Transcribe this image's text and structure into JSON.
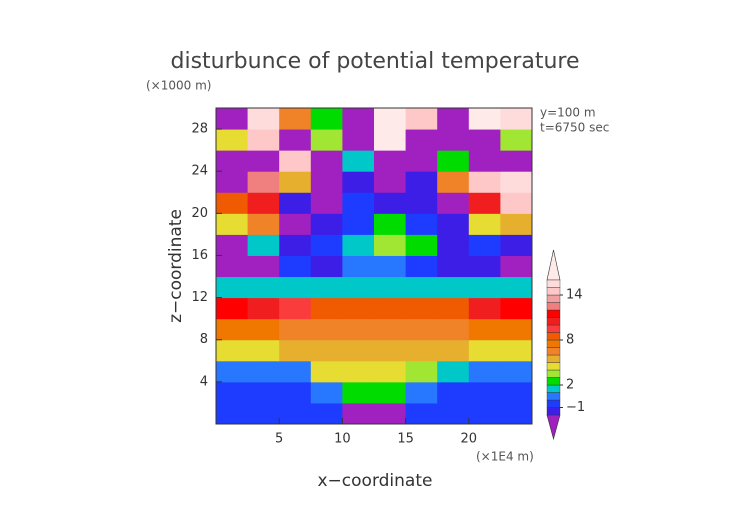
{
  "chart_data": {
    "type": "contour",
    "title": "disturbunce of potential temperature",
    "y_unit": "(×1000 m)",
    "x_unit": "(×1E4 m)",
    "annotations": [
      "y=100 m",
      "t=6750 sec"
    ],
    "x_label": "x−coordinate",
    "y_label": "z−coordinate",
    "xlim": [
      0,
      25
    ],
    "ylim": [
      0,
      30
    ],
    "xticks": [
      5,
      10,
      15,
      20
    ],
    "yticks": [
      4,
      8,
      12,
      16,
      20,
      24,
      28
    ],
    "x": [
      1.25,
      3.75,
      6.25,
      8.75,
      11.25,
      13.75,
      16.25,
      18.75,
      21.25,
      23.75
    ],
    "z": [
      1,
      3,
      5,
      7,
      9,
      11,
      13,
      15,
      17,
      19,
      21,
      23,
      25,
      27,
      29
    ],
    "values": [
      [
        -0.5,
        -0.5,
        -0.5,
        -0.5,
        -3,
        -3,
        -0.5,
        -0.5,
        -0.5,
        -0.5
      ],
      [
        -0.5,
        -0.5,
        -0.5,
        0.5,
        2.5,
        2,
        0.5,
        -0.5,
        -0.5,
        -0.5
      ],
      [
        0,
        0,
        0.5,
        4,
        4.5,
        4,
        3,
        1,
        0,
        0
      ],
      [
        4,
        4.5,
        5,
        5.5,
        5.5,
        5.5,
        5.5,
        5,
        4.5,
        4
      ],
      [
        7,
        7,
        6,
        6.5,
        6.5,
        6.5,
        6.5,
        6.5,
        7,
        7
      ],
      [
        11,
        10,
        9,
        8,
        8,
        8,
        8,
        8,
        10,
        11
      ],
      [
        1,
        1.5,
        1,
        1,
        1,
        1,
        1,
        1,
        1.5,
        1
      ],
      [
        -3,
        -3,
        -1,
        -1.5,
        0,
        0,
        -1,
        -1.5,
        -2,
        -3
      ],
      [
        -3,
        1,
        -2,
        -1,
        1,
        3,
        2,
        -2,
        -1,
        -2
      ],
      [
        4,
        6,
        -3,
        -2,
        -1,
        2,
        -1,
        -2,
        4,
        5
      ],
      [
        8,
        10,
        -2,
        -3,
        -1,
        -2,
        -2,
        -3,
        10,
        14
      ],
      [
        -3,
        12,
        5,
        -3,
        -2,
        -3,
        -2,
        6,
        14,
        15
      ],
      [
        -3,
        -3,
        14,
        -3,
        1,
        -3,
        -3,
        2,
        -3,
        -3
      ],
      [
        4,
        14,
        -3,
        3,
        -3,
        16,
        -3,
        -3,
        -3,
        3
      ],
      [
        -3,
        15,
        6,
        2,
        -3,
        17,
        14,
        -3,
        16,
        15
      ]
    ],
    "levels": [
      -2,
      -1,
      0,
      1,
      2,
      3,
      4,
      5,
      6,
      7,
      8,
      9,
      10,
      11,
      12,
      13,
      14,
      15,
      16
    ],
    "colors": [
      "#3c1ee6",
      "#1e3cff",
      "#2878ff",
      "#00c8c8",
      "#00dc00",
      "#a0e632",
      "#e6dc32",
      "#e6af2d",
      "#f08228",
      "#f07800",
      "#f05a00",
      "#fa3c3c",
      "#f01e1e",
      "#ff0000",
      "#f08080",
      "#f0a0a0",
      "#ffc8c8",
      "#ffdcdc"
    ],
    "under_color": "#a020c0",
    "over_color": "#ffeaea",
    "colorbar_ticks": [
      {
        "value": -1,
        "label": "−1"
      },
      2,
      8,
      14
    ]
  }
}
